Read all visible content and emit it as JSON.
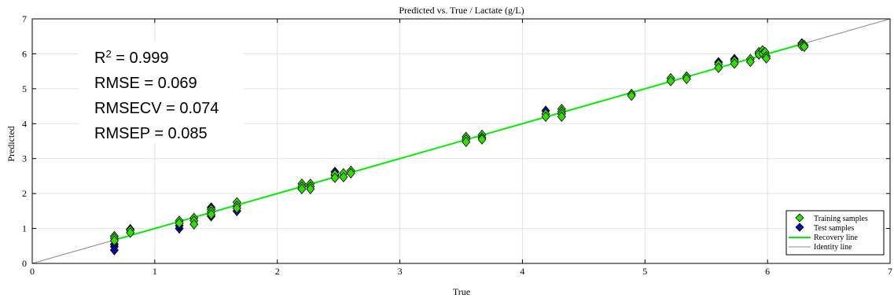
{
  "chart_data": {
    "type": "scatter",
    "title": "Predicted vs. True / Lactate (g/L)",
    "xlabel": "True",
    "ylabel": "Predicted",
    "xlim": [
      0,
      7
    ],
    "ylim": [
      0,
      7
    ],
    "xticks": [
      0,
      1,
      2,
      3,
      4,
      5,
      6,
      7
    ],
    "yticks": [
      0,
      1,
      2,
      3,
      4,
      5,
      6,
      7
    ],
    "grid": true,
    "legend_position": "bottom-right",
    "stats": [
      {
        "label": "R",
        "sup": "2",
        "rest": " = 0.999"
      },
      {
        "label": "RMSE = 0.069",
        "sup": "",
        "rest": ""
      },
      {
        "label": "RMSECV = 0.074",
        "sup": "",
        "rest": ""
      },
      {
        "label": "RMSEP = 0.085",
        "sup": "",
        "rest": ""
      }
    ],
    "series": [
      {
        "name": "Training samples",
        "marker": "diamond",
        "color": "#33dd00",
        "points": [
          [
            0.67,
            0.78
          ],
          [
            0.67,
            0.72
          ],
          [
            0.67,
            0.65
          ],
          [
            0.8,
            0.95
          ],
          [
            0.8,
            0.88
          ],
          [
            1.2,
            1.22
          ],
          [
            1.2,
            1.15
          ],
          [
            1.32,
            1.3
          ],
          [
            1.32,
            1.22
          ],
          [
            1.32,
            1.12
          ],
          [
            1.46,
            1.55
          ],
          [
            1.46,
            1.48
          ],
          [
            1.46,
            1.4
          ],
          [
            1.67,
            1.75
          ],
          [
            1.67,
            1.65
          ],
          [
            1.67,
            1.58
          ],
          [
            2.2,
            2.28
          ],
          [
            2.2,
            2.2
          ],
          [
            2.2,
            2.13
          ],
          [
            2.27,
            2.28
          ],
          [
            2.27,
            2.2
          ],
          [
            2.27,
            2.13
          ],
          [
            2.47,
            2.55
          ],
          [
            2.47,
            2.45
          ],
          [
            2.54,
            2.58
          ],
          [
            2.54,
            2.47
          ],
          [
            2.6,
            2.65
          ],
          [
            2.6,
            2.58
          ],
          [
            3.54,
            3.62
          ],
          [
            3.54,
            3.55
          ],
          [
            3.54,
            3.48
          ],
          [
            3.67,
            3.68
          ],
          [
            3.67,
            3.6
          ],
          [
            3.67,
            3.55
          ],
          [
            4.19,
            4.28
          ],
          [
            4.19,
            4.2
          ],
          [
            4.32,
            4.42
          ],
          [
            4.32,
            4.35
          ],
          [
            4.32,
            4.28
          ],
          [
            4.32,
            4.2
          ],
          [
            4.89,
            4.85
          ],
          [
            4.89,
            4.8
          ],
          [
            5.21,
            5.3
          ],
          [
            5.21,
            5.22
          ],
          [
            5.34,
            5.35
          ],
          [
            5.34,
            5.28
          ],
          [
            5.6,
            5.7
          ],
          [
            5.6,
            5.6
          ],
          [
            5.73,
            5.8
          ],
          [
            5.73,
            5.72
          ],
          [
            5.86,
            5.85
          ],
          [
            5.86,
            5.77
          ],
          [
            5.93,
            6.05
          ],
          [
            5.93,
            5.98
          ],
          [
            5.96,
            6.1
          ],
          [
            5.96,
            6.0
          ],
          [
            5.98,
            6.05
          ],
          [
            5.99,
            5.93
          ],
          [
            5.99,
            5.87
          ],
          [
            6.28,
            6.28
          ],
          [
            6.28,
            6.22
          ],
          [
            6.3,
            6.25
          ],
          [
            6.3,
            6.2
          ]
        ]
      },
      {
        "name": "Test samples",
        "marker": "diamond",
        "color": "#0a0aa8",
        "points": [
          [
            0.67,
            0.55
          ],
          [
            0.67,
            0.48
          ],
          [
            0.67,
            0.38
          ],
          [
            0.8,
            0.98
          ],
          [
            1.2,
            1.0
          ],
          [
            1.2,
            1.08
          ],
          [
            1.46,
            1.6
          ],
          [
            1.46,
            1.35
          ],
          [
            1.67,
            1.5
          ],
          [
            2.47,
            2.62
          ],
          [
            2.47,
            2.52
          ],
          [
            4.19,
            4.37
          ],
          [
            5.6,
            5.76
          ],
          [
            5.73,
            5.85
          ],
          [
            5.93,
            6.02
          ],
          [
            6.28,
            6.3
          ]
        ]
      },
      {
        "name": "Recovery line",
        "style": "line",
        "color": "#00ee00",
        "x": [
          0.67,
          6.3
        ],
        "y": [
          0.67,
          6.3
        ]
      },
      {
        "name": "Identity line",
        "style": "line",
        "color": "#8c8c8c",
        "x": [
          0,
          7
        ],
        "y": [
          0,
          7
        ]
      }
    ]
  }
}
